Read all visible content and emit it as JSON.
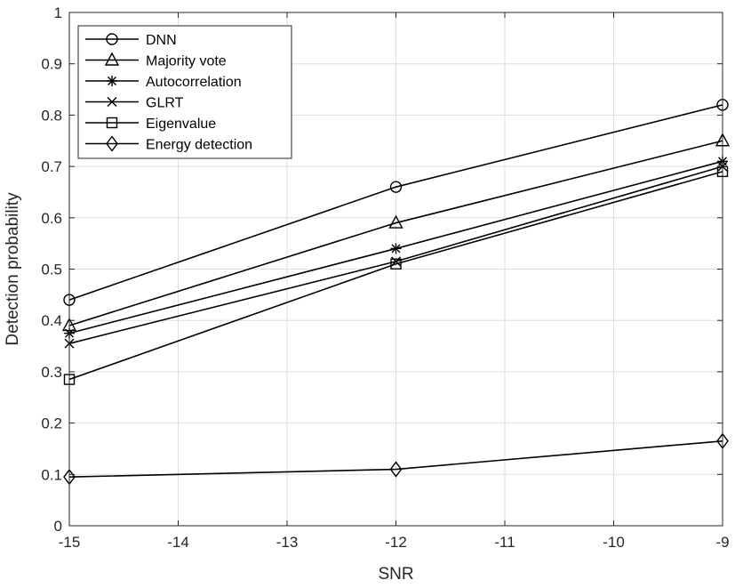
{
  "chart_data": {
    "type": "line",
    "x": [
      -15,
      -12,
      -9
    ],
    "xlabel": "SNR",
    "ylabel": "Detection probability",
    "xlim": [
      -15,
      -9
    ],
    "ylim": [
      0,
      1
    ],
    "xticks": [
      -15,
      -14,
      -13,
      -12,
      -11,
      -10,
      -9
    ],
    "yticks": [
      0,
      0.1,
      0.2,
      0.3,
      0.4,
      0.5,
      0.6,
      0.7,
      0.8,
      0.9,
      1
    ],
    "xtick_labels": [
      "-15",
      "-14",
      "-13",
      "-12",
      "-11",
      "-10",
      "-9"
    ],
    "ytick_labels": [
      "0",
      "0.1",
      "0.2",
      "0.3",
      "0.4",
      "0.5",
      "0.6",
      "0.7",
      "0.8",
      "0.9",
      "1"
    ],
    "grid": true,
    "legend_position": "top-left",
    "series": [
      {
        "name": "DNN",
        "marker": "circle",
        "values": [
          0.44,
          0.66,
          0.82
        ]
      },
      {
        "name": "Majority vote",
        "marker": "triangle",
        "values": [
          0.39,
          0.59,
          0.75
        ]
      },
      {
        "name": "Autocorrelation",
        "marker": "asterisk",
        "values": [
          0.375,
          0.54,
          0.71
        ]
      },
      {
        "name": "GLRT",
        "marker": "x",
        "values": [
          0.355,
          0.515,
          0.7
        ]
      },
      {
        "name": "Eigenvalue",
        "marker": "square",
        "values": [
          0.285,
          0.51,
          0.69
        ]
      },
      {
        "name": "Energy detection",
        "marker": "diamond",
        "values": [
          0.095,
          0.11,
          0.165
        ]
      }
    ]
  }
}
